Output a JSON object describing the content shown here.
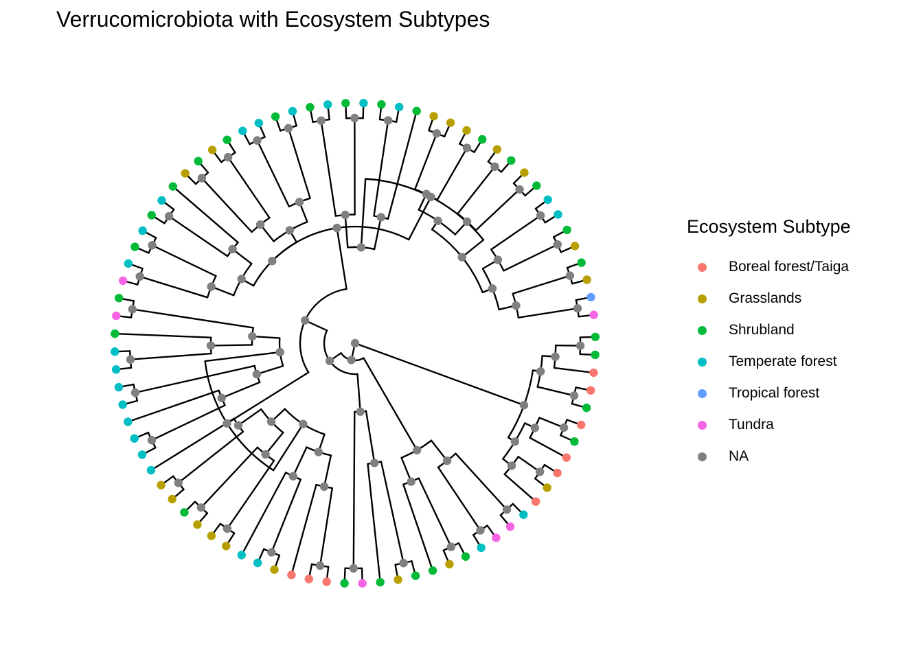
{
  "title": "Verrucomicrobiota with Ecosystem Subtypes",
  "legend": {
    "title": "Ecosystem Subtype",
    "items": [
      {
        "label": "Boreal forest/Taiga",
        "color": "#F8766D"
      },
      {
        "label": "Grasslands",
        "color": "#B79F00"
      },
      {
        "label": "Shrubland",
        "color": "#00BA38"
      },
      {
        "label": "Temperate forest",
        "color": "#00BFC4"
      },
      {
        "label": "Tropical forest",
        "color": "#619CFF"
      },
      {
        "label": "Tundra",
        "color": "#F564E3"
      },
      {
        "label": "NA",
        "color": "#808080"
      }
    ]
  },
  "tree": {
    "layout": "circular",
    "tips": [
      "Shrubland",
      "Shrubland",
      "Boreal forest/Taiga",
      "Boreal forest/Taiga",
      "Shrubland",
      "Boreal forest/Taiga",
      "Shrubland",
      "Boreal forest/Taiga",
      "Boreal forest/Taiga",
      "Grasslands",
      "Boreal forest/Taiga",
      "Temperate forest",
      "Tundra",
      "Tundra",
      "Temperate forest",
      "Shrubland",
      "Grasslands",
      "Shrubland",
      "Shrubland",
      "Grasslands",
      "Shrubland",
      "Tundra",
      "Shrubland",
      "Boreal forest/Taiga",
      "Boreal forest/Taiga",
      "Boreal forest/Taiga",
      "Grasslands",
      "Temperate forest",
      "Temperate forest",
      "Grasslands",
      "Grasslands",
      "Grasslands",
      "Shrubland",
      "Grasslands",
      "Grasslands",
      "Temperate forest",
      "Temperate forest",
      "Temperate forest",
      "Temperate forest",
      "Temperate forest",
      "Temperate forest",
      "Temperate forest",
      "Temperate forest",
      "Shrubland",
      "Tundra",
      "Shrubland",
      "Tundra",
      "Temperate forest",
      "Shrubland",
      "Temperate forest",
      "Shrubland",
      "Temperate forest",
      "Shrubland",
      "Grasslands",
      "Shrubland",
      "Grasslands",
      "Shrubland",
      "Temperate forest",
      "Temperate forest",
      "Shrubland",
      "Temperate forest",
      "Shrubland",
      "Temperate forest",
      "Shrubland",
      "Temperate forest",
      "Shrubland",
      "Temperate forest",
      "Shrubland",
      "Grasslands",
      "Grasslands",
      "Grasslands",
      "Shrubland",
      "Grasslands",
      "Shrubland",
      "Grasslands",
      "Shrubland",
      "Temperate forest",
      "Temperate forest",
      "Shrubland",
      "Grasslands",
      "Shrubland",
      "Grasslands",
      "Tropical forest",
      "Tundra"
    ]
  }
}
